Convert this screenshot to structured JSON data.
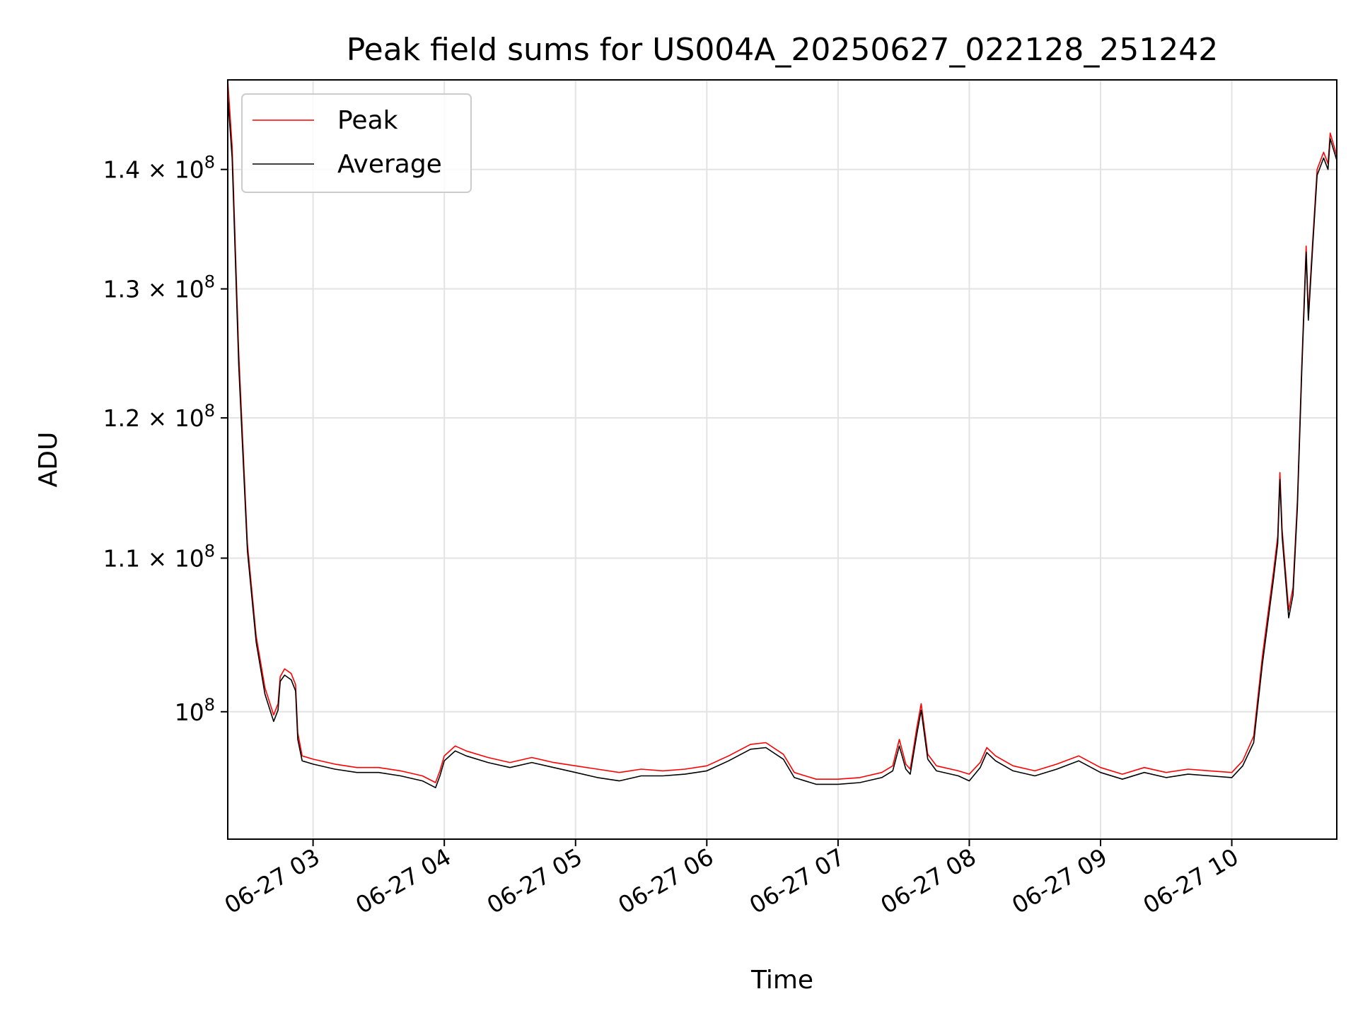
{
  "chart_data": {
    "type": "line",
    "title": "Peak field sums for US004A_20250627_022128_251242",
    "xlabel": "Time",
    "ylabel": "ADU",
    "y_scale": "log",
    "x_range": [
      "06-27 02:21",
      "06-27 10:48"
    ],
    "ylim": [
      92400000,
      148000000
    ],
    "grid": true,
    "legend_position": "upper-left",
    "x_ticks": [
      {
        "time": "06-27 03:00",
        "label": "06-27 03"
      },
      {
        "time": "06-27 04:00",
        "label": "06-27 04"
      },
      {
        "time": "06-27 05:00",
        "label": "06-27 05"
      },
      {
        "time": "06-27 06:00",
        "label": "06-27 06"
      },
      {
        "time": "06-27 07:00",
        "label": "06-27 07"
      },
      {
        "time": "06-27 08:00",
        "label": "06-27 08"
      },
      {
        "time": "06-27 09:00",
        "label": "06-27 09"
      },
      {
        "time": "06-27 10:00",
        "label": "06-27 10"
      }
    ],
    "y_ticks": [
      {
        "value": 100000000,
        "mantissa": "",
        "exponent": "8"
      },
      {
        "value": 110000000,
        "mantissa": "1.1",
        "exponent": "8"
      },
      {
        "value": 120000000,
        "mantissa": "1.2",
        "exponent": "8"
      },
      {
        "value": 130000000,
        "mantissa": "1.3",
        "exponent": "8"
      },
      {
        "value": 140000000,
        "mantissa": "1.4",
        "exponent": "8"
      }
    ],
    "series": [
      {
        "name": "Peak",
        "color": "#ff0000",
        "points": [
          [
            "06-27 02:21",
            148000000
          ],
          [
            "06-27 02:23",
            142000000
          ],
          [
            "06-27 02:26",
            125000000
          ],
          [
            "06-27 02:30",
            111000000
          ],
          [
            "06-27 02:34",
            104800000
          ],
          [
            "06-27 02:38",
            101500000
          ],
          [
            "06-27 02:42",
            99800000
          ],
          [
            "06-27 02:44",
            100500000
          ],
          [
            "06-27 02:45",
            102200000
          ],
          [
            "06-27 02:47",
            102700000
          ],
          [
            "06-27 02:50",
            102400000
          ],
          [
            "06-27 02:52",
            101700000
          ],
          [
            "06-27 02:53",
            98700000
          ],
          [
            "06-27 02:55",
            97300000
          ],
          [
            "06-27 03:00",
            97100000
          ],
          [
            "06-27 03:10",
            96800000
          ],
          [
            "06-27 03:20",
            96600000
          ],
          [
            "06-27 03:30",
            96600000
          ],
          [
            "06-27 03:40",
            96400000
          ],
          [
            "06-27 03:50",
            96100000
          ],
          [
            "06-27 03:56",
            95700000
          ],
          [
            "06-27 03:58",
            96400000
          ],
          [
            "06-27 04:00",
            97300000
          ],
          [
            "06-27 04:05",
            97900000
          ],
          [
            "06-27 04:10",
            97600000
          ],
          [
            "06-27 04:20",
            97200000
          ],
          [
            "06-27 04:30",
            96900000
          ],
          [
            "06-27 04:40",
            97200000
          ],
          [
            "06-27 04:50",
            96900000
          ],
          [
            "06-27 05:00",
            96700000
          ],
          [
            "06-27 05:10",
            96500000
          ],
          [
            "06-27 05:20",
            96300000
          ],
          [
            "06-27 05:30",
            96500000
          ],
          [
            "06-27 05:40",
            96400000
          ],
          [
            "06-27 05:50",
            96500000
          ],
          [
            "06-27 06:00",
            96700000
          ],
          [
            "06-27 06:10",
            97300000
          ],
          [
            "06-27 06:20",
            98000000
          ],
          [
            "06-27 06:27",
            98100000
          ],
          [
            "06-27 06:35",
            97400000
          ],
          [
            "06-27 06:40",
            96300000
          ],
          [
            "06-27 06:50",
            95900000
          ],
          [
            "06-27 07:00",
            95900000
          ],
          [
            "06-27 07:10",
            96000000
          ],
          [
            "06-27 07:20",
            96300000
          ],
          [
            "06-27 07:25",
            96700000
          ],
          [
            "06-27 07:28",
            98300000
          ],
          [
            "06-27 07:31",
            96800000
          ],
          [
            "06-27 07:33",
            96500000
          ],
          [
            "06-27 07:36",
            99000000
          ],
          [
            "06-27 07:38",
            100500000
          ],
          [
            "06-27 07:41",
            97400000
          ],
          [
            "06-27 07:45",
            96700000
          ],
          [
            "06-27 07:55",
            96400000
          ],
          [
            "06-27 08:00",
            96200000
          ],
          [
            "06-27 08:05",
            96900000
          ],
          [
            "06-27 08:08",
            97800000
          ],
          [
            "06-27 08:12",
            97300000
          ],
          [
            "06-27 08:20",
            96700000
          ],
          [
            "06-27 08:30",
            96400000
          ],
          [
            "06-27 08:40",
            96800000
          ],
          [
            "06-27 08:50",
            97300000
          ],
          [
            "06-27 09:00",
            96600000
          ],
          [
            "06-27 09:10",
            96200000
          ],
          [
            "06-27 09:20",
            96600000
          ],
          [
            "06-27 09:30",
            96300000
          ],
          [
            "06-27 09:40",
            96500000
          ],
          [
            "06-27 09:50",
            96400000
          ],
          [
            "06-27 10:00",
            96300000
          ],
          [
            "06-27 10:05",
            97000000
          ],
          [
            "06-27 10:10",
            98500000
          ],
          [
            "06-27 10:14",
            103500000
          ],
          [
            "06-27 10:19",
            109000000
          ],
          [
            "06-27 10:21",
            111500000
          ],
          [
            "06-27 10:22",
            116000000
          ],
          [
            "06-27 10:23",
            112000000
          ],
          [
            "06-27 10:26",
            106500000
          ],
          [
            "06-27 10:28",
            108000000
          ],
          [
            "06-27 10:30",
            114000000
          ],
          [
            "06-27 10:32",
            124000000
          ],
          [
            "06-27 10:34",
            133500000
          ],
          [
            "06-27 10:35",
            128000000
          ],
          [
            "06-27 10:37",
            134000000
          ],
          [
            "06-27 10:39",
            140000000
          ],
          [
            "06-27 10:42",
            141500000
          ],
          [
            "06-27 10:44",
            140500000
          ],
          [
            "06-27 10:45",
            143200000
          ],
          [
            "06-27 10:48",
            141200000
          ]
        ]
      },
      {
        "name": "Average",
        "color": "#000000",
        "points": [
          [
            "06-27 02:21",
            146500000
          ],
          [
            "06-27 02:23",
            141000000
          ],
          [
            "06-27 02:26",
            124000000
          ],
          [
            "06-27 02:30",
            110500000
          ],
          [
            "06-27 02:34",
            104400000
          ],
          [
            "06-27 02:38",
            101100000
          ],
          [
            "06-27 02:42",
            99400000
          ],
          [
            "06-27 02:44",
            100100000
          ],
          [
            "06-27 02:45",
            101900000
          ],
          [
            "06-27 02:47",
            102300000
          ],
          [
            "06-27 02:50",
            102000000
          ],
          [
            "06-27 02:52",
            101300000
          ],
          [
            "06-27 02:53",
            98300000
          ],
          [
            "06-27 02:55",
            97000000
          ],
          [
            "06-27 03:00",
            96800000
          ],
          [
            "06-27 03:10",
            96500000
          ],
          [
            "06-27 03:20",
            96300000
          ],
          [
            "06-27 03:30",
            96300000
          ],
          [
            "06-27 03:40",
            96100000
          ],
          [
            "06-27 03:50",
            95800000
          ],
          [
            "06-27 03:56",
            95400000
          ],
          [
            "06-27 03:58",
            96100000
          ],
          [
            "06-27 04:00",
            97000000
          ],
          [
            "06-27 04:05",
            97600000
          ],
          [
            "06-27 04:10",
            97300000
          ],
          [
            "06-27 04:20",
            96900000
          ],
          [
            "06-27 04:30",
            96600000
          ],
          [
            "06-27 04:40",
            96900000
          ],
          [
            "06-27 04:50",
            96600000
          ],
          [
            "06-27 05:00",
            96300000
          ],
          [
            "06-27 05:10",
            96000000
          ],
          [
            "06-27 05:20",
            95800000
          ],
          [
            "06-27 05:30",
            96100000
          ],
          [
            "06-27 05:40",
            96100000
          ],
          [
            "06-27 05:50",
            96200000
          ],
          [
            "06-27 06:00",
            96400000
          ],
          [
            "06-27 06:10",
            97000000
          ],
          [
            "06-27 06:20",
            97700000
          ],
          [
            "06-27 06:27",
            97800000
          ],
          [
            "06-27 06:35",
            97100000
          ],
          [
            "06-27 06:40",
            96000000
          ],
          [
            "06-27 06:50",
            95600000
          ],
          [
            "06-27 07:00",
            95600000
          ],
          [
            "06-27 07:10",
            95700000
          ],
          [
            "06-27 07:20",
            96000000
          ],
          [
            "06-27 07:25",
            96400000
          ],
          [
            "06-27 07:28",
            97900000
          ],
          [
            "06-27 07:31",
            96500000
          ],
          [
            "06-27 07:33",
            96200000
          ],
          [
            "06-27 07:36",
            98600000
          ],
          [
            "06-27 07:38",
            100100000
          ],
          [
            "06-27 07:41",
            97100000
          ],
          [
            "06-27 07:45",
            96400000
          ],
          [
            "06-27 07:55",
            96100000
          ],
          [
            "06-27 08:00",
            95800000
          ],
          [
            "06-27 08:05",
            96600000
          ],
          [
            "06-27 08:08",
            97500000
          ],
          [
            "06-27 08:12",
            97000000
          ],
          [
            "06-27 08:20",
            96400000
          ],
          [
            "06-27 08:30",
            96100000
          ],
          [
            "06-27 08:40",
            96500000
          ],
          [
            "06-27 08:50",
            97000000
          ],
          [
            "06-27 09:00",
            96300000
          ],
          [
            "06-27 09:10",
            95900000
          ],
          [
            "06-27 09:20",
            96300000
          ],
          [
            "06-27 09:30",
            96000000
          ],
          [
            "06-27 09:40",
            96200000
          ],
          [
            "06-27 09:50",
            96100000
          ],
          [
            "06-27 10:00",
            96000000
          ],
          [
            "06-27 10:05",
            96700000
          ],
          [
            "06-27 10:10",
            98100000
          ],
          [
            "06-27 10:14",
            103000000
          ],
          [
            "06-27 10:19",
            108500000
          ],
          [
            "06-27 10:21",
            111000000
          ],
          [
            "06-27 10:22",
            115500000
          ],
          [
            "06-27 10:23",
            111500000
          ],
          [
            "06-27 10:26",
            106000000
          ],
          [
            "06-27 10:28",
            107500000
          ],
          [
            "06-27 10:30",
            113500000
          ],
          [
            "06-27 10:32",
            123500000
          ],
          [
            "06-27 10:34",
            133000000
          ],
          [
            "06-27 10:35",
            127500000
          ],
          [
            "06-27 10:37",
            133500000
          ],
          [
            "06-27 10:39",
            139500000
          ],
          [
            "06-27 10:42",
            141000000
          ],
          [
            "06-27 10:44",
            140000000
          ],
          [
            "06-27 10:45",
            142700000
          ],
          [
            "06-27 10:48",
            140800000
          ]
        ]
      }
    ]
  }
}
